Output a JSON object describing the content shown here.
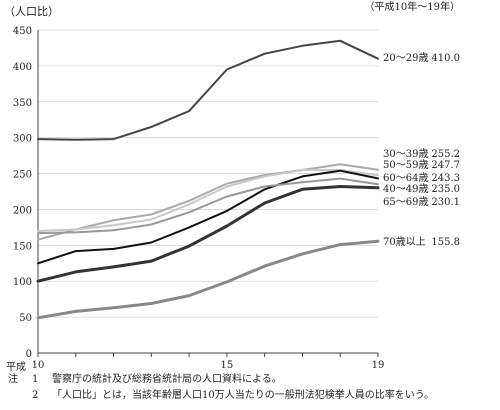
{
  "chart_data": {
    "type": "line",
    "ylabel": "（人口比）",
    "period_note": "（平成10年～19年）",
    "xlabel_era": "平成",
    "ylim": [
      0,
      450
    ],
    "yticks": [
      0,
      50,
      100,
      150,
      200,
      250,
      300,
      350,
      400,
      450
    ],
    "xlim": [
      10,
      19
    ],
    "xtick_labels": [
      {
        "x": 10,
        "label": "10"
      },
      {
        "x": 15,
        "label": "15"
      },
      {
        "x": 19,
        "label": "19"
      }
    ],
    "x": [
      10,
      11,
      12,
      13,
      14,
      15,
      16,
      17,
      18,
      19
    ],
    "series": [
      {
        "name": "20～29歳",
        "end_label": "410.0",
        "color": "#444444",
        "width": 2,
        "values": [
          298,
          297,
          298,
          315,
          337,
          395,
          417,
          428,
          435,
          410.0
        ]
      },
      {
        "name": "30～39歳",
        "end_label": "255.2",
        "color": "#aaaaaa",
        "width": 2,
        "values": [
          158,
          172,
          185,
          193,
          212,
          236,
          248,
          255,
          263,
          255.2
        ]
      },
      {
        "name": "50～59歳",
        "end_label": "247.7",
        "color": "#c8c8c8",
        "width": 2,
        "values": [
          170,
          172,
          178,
          186,
          207,
          232,
          246,
          255,
          255,
          247.7
        ]
      },
      {
        "name": "60～64歳",
        "end_label": "243.3",
        "color": "#111111",
        "width": 2,
        "values": [
          125,
          142,
          145,
          154,
          175,
          198,
          228,
          246,
          254,
          243.3
        ]
      },
      {
        "name": "40～49歳",
        "end_label": "235.0",
        "color": "#999999",
        "width": 2,
        "values": [
          167,
          168,
          171,
          179,
          196,
          218,
          232,
          238,
          243,
          235.0
        ]
      },
      {
        "name": "65～69歳",
        "end_label": "230.1",
        "color": "#333333",
        "width": 3,
        "values": [
          100,
          113,
          120,
          128,
          149,
          177,
          209,
          228,
          232,
          230.1
        ]
      },
      {
        "name": "70歳以上",
        "end_label": "155.8",
        "color": "#888888",
        "width": 3,
        "values": [
          49,
          58,
          63,
          69,
          80,
          99,
          121,
          138,
          151,
          155.8
        ]
      }
    ]
  },
  "notes": [
    {
      "head": "注",
      "num": "1",
      "text": "警察庁の統計及び総務省統計局の人口資料による。"
    },
    {
      "head": "",
      "num": "2",
      "text": "「人口比」とは，当該年齢層人口10万人当たりの一般刑法犯検挙人員の比率をいう。"
    }
  ]
}
